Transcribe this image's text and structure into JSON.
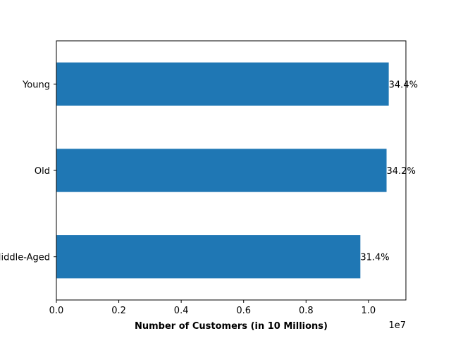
{
  "chart_data": {
    "type": "bar",
    "orientation": "horizontal",
    "title": "",
    "xlabel": "Number of Customers (in 10 Millions)",
    "ylabel": "",
    "x_offset_text": "1e7",
    "xlim": [
      0,
      11200000
    ],
    "x_ticks": [
      0,
      2000000,
      4000000,
      6000000,
      8000000,
      10000000
    ],
    "x_tick_labels": [
      "0.0",
      "0.2",
      "0.4",
      "0.6",
      "0.8",
      "1.0"
    ],
    "categories": [
      "Middle-Aged",
      "Old",
      "Young"
    ],
    "values": [
      9740000,
      10580000,
      10650000
    ],
    "data_labels": [
      "31.4%",
      "34.2%",
      "34.4%"
    ],
    "bar_color": "#1f77b4",
    "grid": false,
    "legend": "none"
  }
}
